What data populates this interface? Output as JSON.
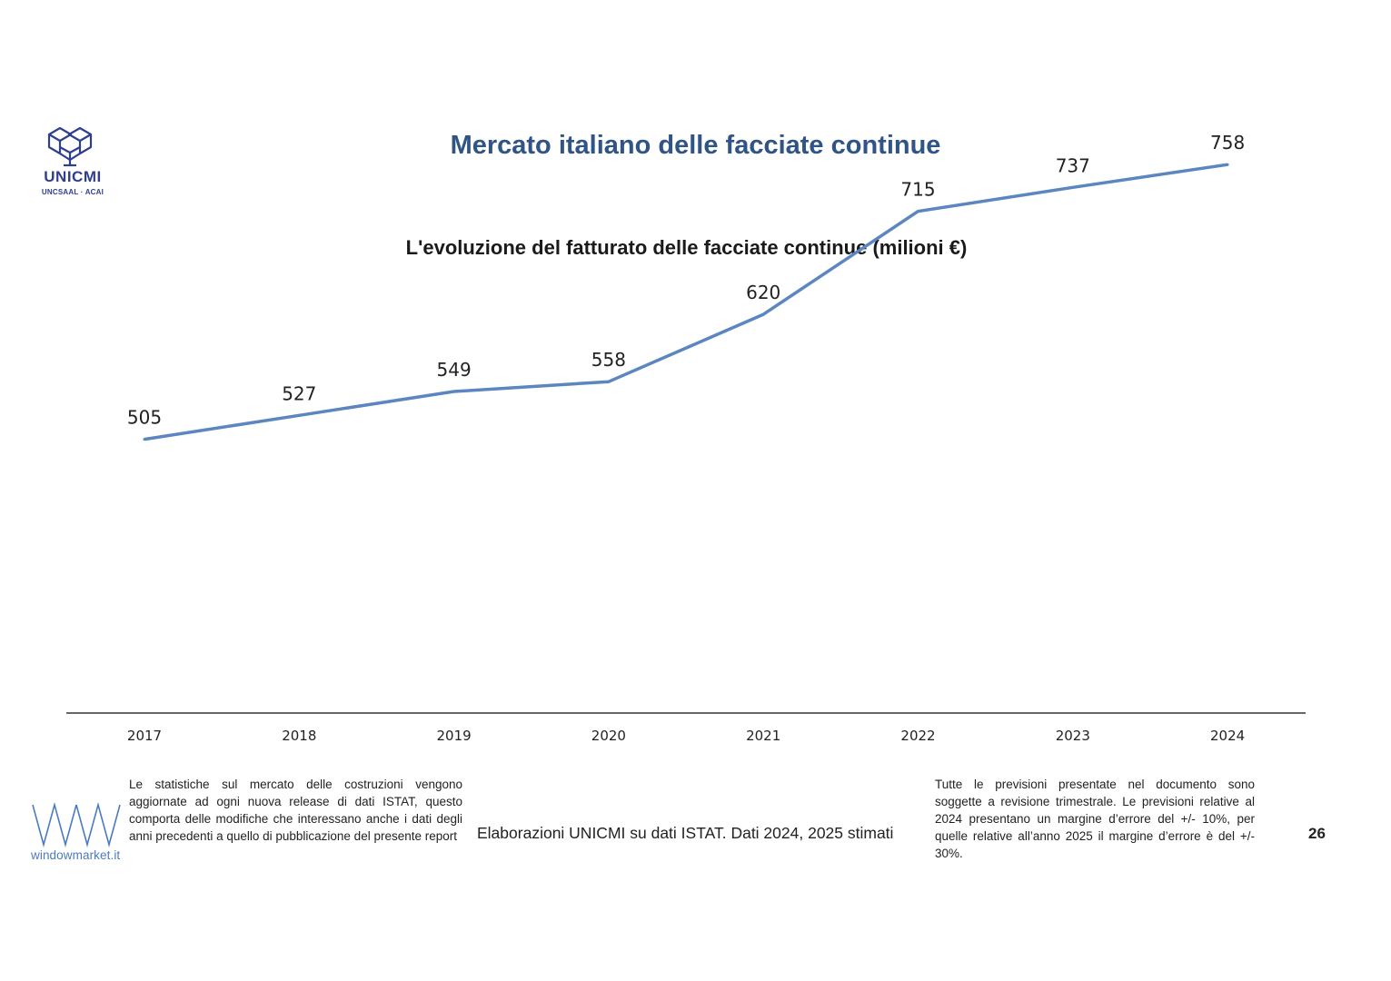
{
  "logo": {
    "name": "UNICMI",
    "sub": "UNCSAAL · ACAI"
  },
  "page_title": "Mercato italiano delle facciate continue",
  "chart_data": {
    "type": "line",
    "title": "L'evoluzione del fatturato delle facciate continue (milioni €)",
    "categories": [
      "2017",
      "2018",
      "2019",
      "2020",
      "2021",
      "2022",
      "2023",
      "2024"
    ],
    "series": [
      {
        "values": [
          505,
          527,
          549,
          558,
          620,
          715,
          737,
          758
        ],
        "color": "#5b86c0"
      }
    ],
    "data_labels": true,
    "grid": false,
    "legend": "none"
  },
  "footer": {
    "note_left": "Le statistiche sul mercato delle costruzioni vengono aggiornate ad ogni nuova release di dati ISTAT, questo comporta delle modifiche che interessano anche i dati degli anni precedenti a quello di pubblicazione del presente report",
    "source": "Elaborazioni UNICMI su dati ISTAT. Dati 2024, 2025 stimati",
    "note_right": "Tutte le previsioni presentate nel documento sono soggette a revisione trimestrale. Le previsioni relative al 2024 presentano un margine d’errore del +/- 10%, per quelle relative all’anno 2025 il margine d’errore è del +/- 30%.",
    "page_number": "26",
    "brand": "windowmarket.it"
  }
}
